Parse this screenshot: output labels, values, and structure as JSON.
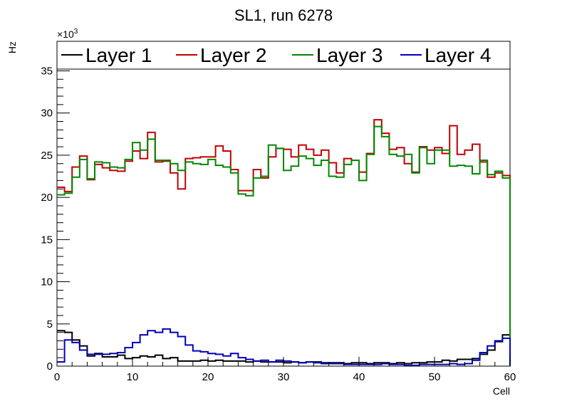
{
  "chart_data": {
    "type": "line",
    "title": "SL1, run 6278",
    "xlabel": "Cell",
    "ylabel": "Hz",
    "y_multiplier_label": "×10",
    "y_multiplier_exp": "3",
    "xlim": [
      0,
      60
    ],
    "ylim": [
      0,
      38.5
    ],
    "x_ticks": [
      0,
      10,
      20,
      30,
      40,
      50,
      60
    ],
    "y_ticks": [
      0,
      5,
      10,
      15,
      20,
      25,
      30,
      35
    ],
    "legend_position": "top",
    "grid": false,
    "series": [
      {
        "name": "Layer 1",
        "color": "#000000",
        "values": [
          4.2,
          4.0,
          3.1,
          2.4,
          1.2,
          1.5,
          1.1,
          1.1,
          1.3,
          0.9,
          1.0,
          1.2,
          1.1,
          1.3,
          0.9,
          1.0,
          0.6,
          0.6,
          0.6,
          0.7,
          0.6,
          0.7,
          0.6,
          0.6,
          0.6,
          0.5,
          0.6,
          0.5,
          0.5,
          0.5,
          0.4,
          0.5,
          0.4,
          0.5,
          0.5,
          0.4,
          0.4,
          0.4,
          0.3,
          0.4,
          0.4,
          0.3,
          0.4,
          0.4,
          0.3,
          0.4,
          0.3,
          0.4,
          0.4,
          0.5,
          0.5,
          0.7,
          0.6,
          0.8,
          0.8,
          0.9,
          1.4,
          1.9,
          2.9,
          3.7
        ]
      },
      {
        "name": "Layer 2",
        "color": "#c00000",
        "values": [
          21.2,
          20.7,
          23.6,
          24.9,
          22.1,
          23.9,
          23.5,
          23.2,
          23.1,
          24.3,
          25.5,
          24.6,
          27.7,
          24.2,
          24.3,
          22.9,
          21.0,
          24.6,
          24.7,
          24.8,
          24.8,
          26.1,
          25.5,
          23.3,
          20.8,
          20.8,
          23.3,
          22.3,
          24.8,
          25.8,
          25.7,
          24.8,
          26.2,
          25.7,
          25.0,
          25.6,
          24.1,
          22.9,
          24.6,
          24.4,
          23.0,
          25.2,
          29.2,
          27.6,
          25.7,
          25.9,
          24.0,
          23.0,
          26.0,
          25.6,
          25.9,
          25.2,
          28.5,
          25.1,
          25.6,
          26.3,
          24.2,
          22.4,
          22.9,
          22.6
        ]
      },
      {
        "name": "Layer 3",
        "color": "#008800",
        "values": [
          20.3,
          20.5,
          22.4,
          24.5,
          22.2,
          24.2,
          24.1,
          23.6,
          23.5,
          24.5,
          26.5,
          25.6,
          26.9,
          24.4,
          24.4,
          24.0,
          23.2,
          24.2,
          24.0,
          23.9,
          24.5,
          23.8,
          23.6,
          22.9,
          20.4,
          20.2,
          22.3,
          22.5,
          26.2,
          25.8,
          23.2,
          23.7,
          24.9,
          24.6,
          23.8,
          24.4,
          22.5,
          22.4,
          23.9,
          24.4,
          22.0,
          25.1,
          28.4,
          27.2,
          25.1,
          24.9,
          25.1,
          22.9,
          25.9,
          24.0,
          25.6,
          25.6,
          23.7,
          23.8,
          23.7,
          22.8,
          24.4,
          22.7,
          23.1,
          22.3
        ]
      },
      {
        "name": "Layer 4",
        "color": "#0000bb",
        "values": [
          0.5,
          3.1,
          2.8,
          1.9,
          1.4,
          1.4,
          1.4,
          1.5,
          1.6,
          2.2,
          2.8,
          3.7,
          4.2,
          4.0,
          4.4,
          4.0,
          3.5,
          2.5,
          1.8,
          1.7,
          1.5,
          1.4,
          1.2,
          1.5,
          1.0,
          0.8,
          0.6,
          0.7,
          0.5,
          0.7,
          0.6,
          0.5,
          0.4,
          0.5,
          0.4,
          0.3,
          0.3,
          0.3,
          0.2,
          0.2,
          0.2,
          0.2,
          0.2,
          0.3,
          0.2,
          0.2,
          0.1,
          0.1,
          0.2,
          0.2,
          0.2,
          0.2,
          0.3,
          0.2,
          0.3,
          0.7,
          1.6,
          2.4,
          3.0,
          3.3
        ]
      }
    ]
  }
}
